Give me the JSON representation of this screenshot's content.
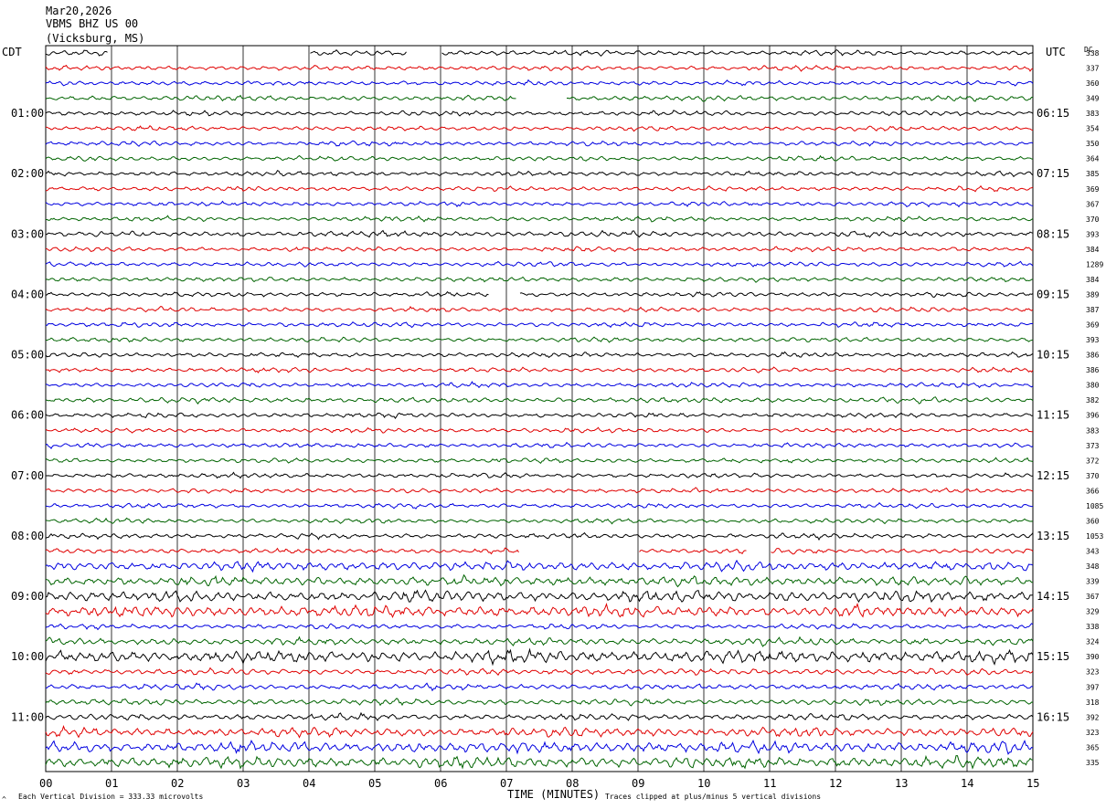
{
  "header": {
    "date": "Mar20,2026",
    "station": "VBMS BHZ US 00",
    "location": "(Vicksburg, MS)"
  },
  "left_axis_title": "CDT",
  "right_axis_title": "UTC",
  "dc_header": "DC",
  "footer": {
    "scale_note": "Each Vertical Division =  333.33 microvolts",
    "clip_note": "Traces clipped at plus/minus 5 vertical divisions",
    "corner_mark": "^"
  },
  "colors": {
    "trace_cycle": [
      "#000000",
      "#e00000",
      "#0000e0",
      "#006400"
    ],
    "grid": "#000000",
    "background": "#ffffff"
  },
  "chart_data": {
    "type": "line",
    "title": "",
    "xlabel": "TIME (MINUTES)",
    "ylabel": "",
    "x_ticks": [
      "00",
      "01",
      "02",
      "03",
      "04",
      "05",
      "06",
      "07",
      "08",
      "09",
      "10",
      "11",
      "12",
      "13",
      "14",
      "15"
    ],
    "xlim": [
      0,
      15
    ],
    "grid": "vertical lines at each minute",
    "trace_count": 48,
    "trace_colors_cycle": [
      "black",
      "red",
      "blue",
      "green"
    ],
    "hour_labels_left": [
      "01:00",
      "02:00",
      "03:00",
      "04:00",
      "05:00",
      "06:00",
      "07:00",
      "08:00",
      "09:00",
      "10:00",
      "11:00"
    ],
    "hour_labels_right": [
      "06:15",
      "07:15",
      "08:15",
      "09:15",
      "10:15",
      "11:15",
      "12:15",
      "13:15",
      "14:15",
      "15:15",
      "16:15"
    ],
    "dc_offsets": [
      "338",
      "337",
      "360",
      "349",
      "383",
      "354",
      "350",
      "364",
      "385",
      "369",
      "367",
      "370",
      "393",
      "384",
      "1289",
      "384",
      "389",
      "387",
      "369",
      "393",
      "386",
      "386",
      "380",
      "382",
      "396",
      "383",
      "373",
      "372",
      "370",
      "366",
      "1085",
      "360",
      "1053",
      "343",
      "348",
      "339",
      "367",
      "329",
      "338",
      "324",
      "390",
      "323",
      "397",
      "318",
      "392",
      "323",
      "365",
      "335"
    ],
    "amplitude_profile": [
      0.5,
      0.45,
      0.45,
      0.5,
      0.45,
      0.45,
      0.45,
      0.45,
      0.45,
      0.45,
      0.45,
      0.45,
      0.55,
      0.45,
      0.45,
      0.45,
      0.45,
      0.45,
      0.45,
      0.45,
      0.45,
      0.45,
      0.45,
      0.5,
      0.45,
      0.45,
      0.45,
      0.45,
      0.45,
      0.45,
      0.45,
      0.45,
      0.5,
      0.5,
      0.9,
      0.9,
      1.1,
      1.1,
      0.5,
      0.7,
      1.2,
      0.6,
      0.55,
      0.6,
      0.6,
      0.9,
      1.1,
      1.1
    ],
    "gaps_minutes": [
      {
        "trace": 0,
        "from": 0.95,
        "to": 4.0
      },
      {
        "trace": 0,
        "from": 5.5,
        "to": 6.0
      },
      {
        "trace": 3,
        "from": 7.15,
        "to": 7.9
      },
      {
        "trace": 16,
        "from": 6.75,
        "to": 7.2
      },
      {
        "trace": 33,
        "from": 7.2,
        "to": 9.0
      },
      {
        "trace": 33,
        "from": 10.65,
        "to": 11.0
      }
    ]
  }
}
